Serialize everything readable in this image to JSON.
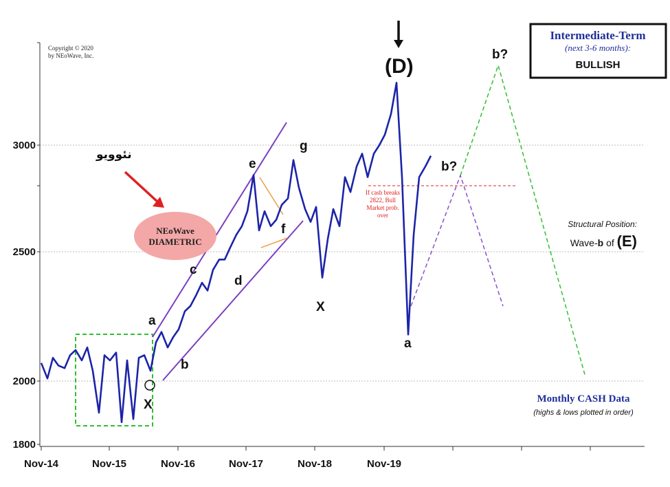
{
  "copyright": [
    "Copyright © 2020",
    "by NEoWave, Inc."
  ],
  "arabic_label": "نئوویو",
  "ellipse_label": [
    "NEoWave",
    "DIAMETRIC"
  ],
  "outlook_box": {
    "title": "Intermediate-Term",
    "subtitle": "(next 3-6 months):",
    "value": "BULLISH"
  },
  "note": [
    "If cash breaks",
    "2822, Bull",
    "Market prob.",
    "over"
  ],
  "structural": {
    "label": "Structural Position:",
    "value_prefix": "Wave-",
    "value_b": "b",
    "value_of": " of ",
    "value_wave": "(E)"
  },
  "monthly": {
    "title": "Monthly CASH Data",
    "subtitle": "(highs & lows plotted in order)"
  },
  "colors": {
    "price": "#1c24a8",
    "channel": "#7b3fbf",
    "triangle": "#e8a040",
    "green": "#2fbf2f",
    "red": "#e02020",
    "ellipse": "#f4a7a7"
  },
  "chart_data": {
    "type": "line",
    "title": "",
    "xlabel": "",
    "ylabel": "",
    "x_tick_labels": [
      "Nov-14",
      "Nov-15",
      "Nov-16",
      "Nov-17",
      "Nov-18",
      "Nov-19"
    ],
    "y_tick_labels": [
      1800,
      2000,
      2500,
      3000
    ],
    "ylim": [
      1800,
      3400
    ],
    "grid": true,
    "series": [
      {
        "name": "",
        "x": [
          2014.83,
          2014.92,
          2015.0,
          2015.08,
          2015.17,
          2015.25,
          2015.33,
          2015.42,
          2015.5,
          2015.58,
          2015.67,
          2015.75,
          2015.83,
          2015.92,
          2016.0,
          2016.08,
          2016.17,
          2016.25,
          2016.33,
          2016.42,
          2016.5,
          2016.58,
          2016.67,
          2016.75,
          2016.83,
          2016.92,
          2017.0,
          2017.08,
          2017.17,
          2017.25,
          2017.33,
          2017.42,
          2017.5,
          2017.58,
          2017.67,
          2017.75,
          2017.83,
          2017.92,
          2018.0,
          2018.08,
          2018.17,
          2018.25,
          2018.33,
          2018.42,
          2018.5,
          2018.58,
          2018.67,
          2018.75,
          2018.83,
          2018.92,
          2019.0,
          2019.08,
          2019.17,
          2019.25,
          2019.33,
          2019.42,
          2019.5,
          2019.58,
          2019.67,
          2019.75,
          2019.83,
          2019.92,
          2020.0,
          2020.08,
          2020.17,
          2020.25,
          2020.33,
          2020.42,
          2020.5
        ],
        "y": [
          2070,
          2010,
          2090,
          2060,
          2050,
          2100,
          2120,
          2080,
          2130,
          2040,
          1900,
          2100,
          2080,
          2110,
          1870,
          2080,
          1880,
          2090,
          2100,
          2040,
          2150,
          2190,
          2130,
          2170,
          2200,
          2270,
          2290,
          2330,
          2380,
          2350,
          2430,
          2470,
          2470,
          2520,
          2580,
          2620,
          2690,
          2860,
          2600,
          2690,
          2620,
          2650,
          2720,
          2750,
          2930,
          2800,
          2700,
          2640,
          2710,
          2400,
          2560,
          2700,
          2620,
          2850,
          2780,
          2900,
          2960,
          2850,
          2960,
          3000,
          3050,
          3150,
          3300,
          2850,
          2180,
          2580,
          2850,
          2900,
          2950
        ]
      }
    ],
    "wave_labels": [
      "(D)",
      "a",
      "b",
      "c",
      "d",
      "e",
      "f",
      "g",
      "X",
      "X",
      "a",
      "b?",
      "b?"
    ]
  }
}
